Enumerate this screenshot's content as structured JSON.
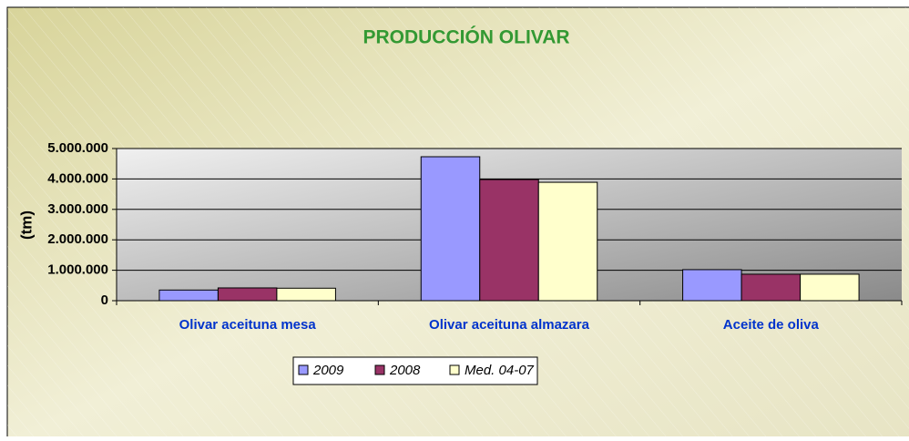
{
  "chart_data": {
    "type": "bar",
    "title": "PRODUCCIÓN OLIVAR",
    "y_label": "(tm)",
    "categories": [
      "Olivar aceituna mesa",
      "Olivar aceituna almazara",
      "Aceite de oliva"
    ],
    "series": [
      {
        "name": "2009",
        "color": "#9999ff",
        "values": [
          350000,
          4730000,
          1020000
        ]
      },
      {
        "name": "2008",
        "color": "#993366",
        "values": [
          420000,
          3980000,
          870000
        ]
      },
      {
        "name": "Med. 04-07",
        "color": "#ffffcc",
        "values": [
          410000,
          3890000,
          870000
        ]
      }
    ],
    "ylim": [
      0,
      5000000
    ],
    "yticks": [
      0,
      {
        "value": 1000000,
        "label": "1.000.000"
      },
      {
        "value": 2000000,
        "label": "2.000.000"
      },
      {
        "value": 3000000,
        "label": "3.000.000"
      },
      {
        "value": 4000000,
        "label": "4.000.000"
      },
      {
        "value": 5000000,
        "label": "5.000.000"
      }
    ],
    "grid": true
  }
}
